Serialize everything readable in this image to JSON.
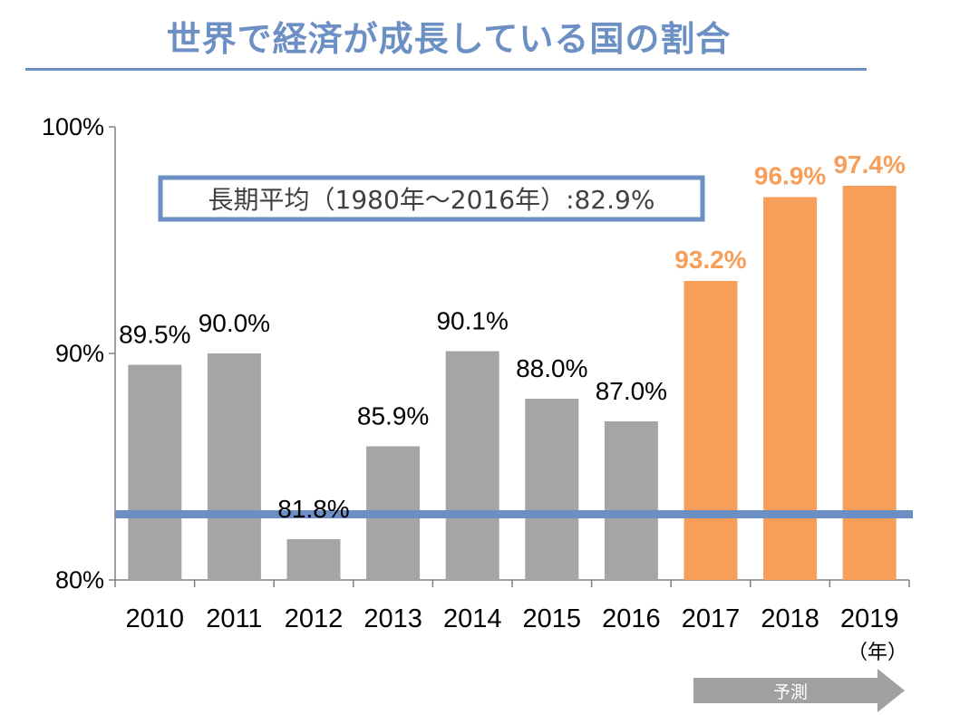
{
  "title": "世界で経済が成長している国の割合",
  "colors": {
    "title": "#6c8fc4",
    "rule": "#6c8fc4",
    "actual_bar": "#a5a5a5",
    "forecast_bar": "#f79f5a",
    "forecast_text": "#f79f5a",
    "average_line": "#6b8ec5",
    "forecast_arrow": "#a0a0a0"
  },
  "chart_data": {
    "type": "bar",
    "title": "世界で経済が成長している国の割合",
    "categories": [
      "2010",
      "2011",
      "2012",
      "2013",
      "2014",
      "2015",
      "2016",
      "2017",
      "2018",
      "2019"
    ],
    "values": [
      89.5,
      90.0,
      81.8,
      85.9,
      90.1,
      88.0,
      87.0,
      93.2,
      96.9,
      97.4
    ],
    "value_labels": [
      "89.5%",
      "90.0%",
      "81.8%",
      "85.9%",
      "90.1%",
      "88.0%",
      "87.0%",
      "93.2%",
      "96.9%",
      "97.4%"
    ],
    "forecast": [
      false,
      false,
      false,
      false,
      false,
      false,
      false,
      true,
      true,
      true
    ],
    "ylim": [
      80,
      100
    ],
    "yticks": [
      80,
      90,
      100
    ],
    "ytick_labels": [
      "80%",
      "90%",
      "100%"
    ],
    "xlabel": "（年）",
    "ylabel": "",
    "average": {
      "value": 82.9,
      "label": "長期平均（1980年～2016年）:82.9%"
    },
    "forecast_label": "予測"
  }
}
